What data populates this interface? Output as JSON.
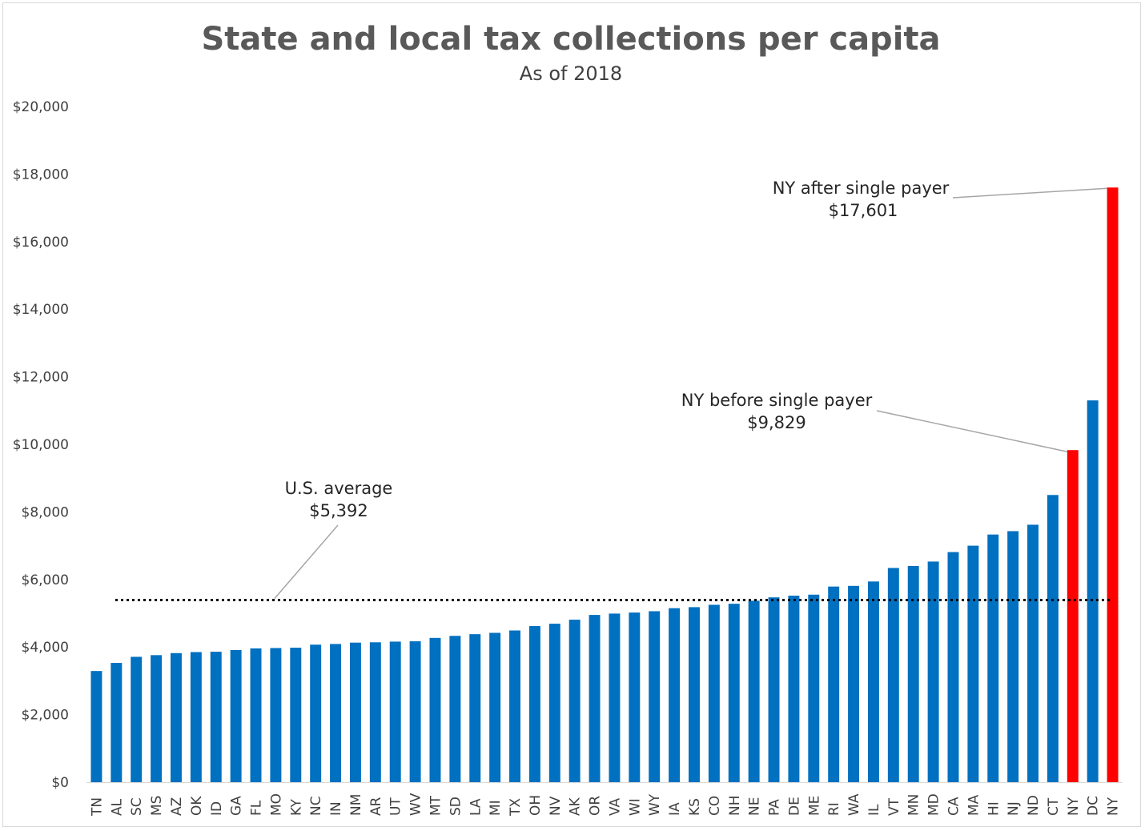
{
  "chart_data": {
    "type": "bar",
    "title": "State and local tax collections per capita",
    "subtitle": "As of 2018",
    "xlabel": "",
    "ylabel": "",
    "ylim": [
      0,
      20000
    ],
    "yticks": [
      {
        "value": 0,
        "label": "$0"
      },
      {
        "value": 2000,
        "label": "$2,000"
      },
      {
        "value": 4000,
        "label": "$4,000"
      },
      {
        "value": 6000,
        "label": "$6,000"
      },
      {
        "value": 8000,
        "label": "$8,000"
      },
      {
        "value": 10000,
        "label": "$10,000"
      },
      {
        "value": 12000,
        "label": "$12,000"
      },
      {
        "value": 14000,
        "label": "$14,000"
      },
      {
        "value": 16000,
        "label": "$16,000"
      },
      {
        "value": 18000,
        "label": "$18,000"
      },
      {
        "value": 20000,
        "label": "$20,000"
      }
    ],
    "grid": false,
    "categories": [
      "TN",
      "AL",
      "SC",
      "MS",
      "AZ",
      "OK",
      "ID",
      "GA",
      "FL",
      "MO",
      "KY",
      "NC",
      "IN",
      "NM",
      "AR",
      "UT",
      "WV",
      "MT",
      "SD",
      "LA",
      "MI",
      "TX",
      "OH",
      "NV",
      "AK",
      "OR",
      "VA",
      "WI",
      "WY",
      "IA",
      "KS",
      "CO",
      "NH",
      "NE",
      "PA",
      "DE",
      "ME",
      "RI",
      "WA",
      "IL",
      "VT",
      "MN",
      "MD",
      "CA",
      "MA",
      "HI",
      "NJ",
      "ND",
      "CT",
      "NY",
      "DC",
      "NY"
    ],
    "values": [
      3290,
      3530,
      3710,
      3760,
      3820,
      3850,
      3860,
      3910,
      3960,
      3970,
      3980,
      4070,
      4090,
      4130,
      4140,
      4160,
      4170,
      4270,
      4330,
      4380,
      4420,
      4490,
      4620,
      4690,
      4810,
      4950,
      4990,
      5020,
      5060,
      5150,
      5180,
      5250,
      5280,
      5370,
      5470,
      5520,
      5550,
      5790,
      5810,
      5940,
      6340,
      6400,
      6530,
      6810,
      7000,
      7330,
      7430,
      7620,
      8500,
      9829,
      11300,
      17601
    ],
    "colors": [
      "#0070c0",
      "#0070c0",
      "#0070c0",
      "#0070c0",
      "#0070c0",
      "#0070c0",
      "#0070c0",
      "#0070c0",
      "#0070c0",
      "#0070c0",
      "#0070c0",
      "#0070c0",
      "#0070c0",
      "#0070c0",
      "#0070c0",
      "#0070c0",
      "#0070c0",
      "#0070c0",
      "#0070c0",
      "#0070c0",
      "#0070c0",
      "#0070c0",
      "#0070c0",
      "#0070c0",
      "#0070c0",
      "#0070c0",
      "#0070c0",
      "#0070c0",
      "#0070c0",
      "#0070c0",
      "#0070c0",
      "#0070c0",
      "#0070c0",
      "#0070c0",
      "#0070c0",
      "#0070c0",
      "#0070c0",
      "#0070c0",
      "#0070c0",
      "#0070c0",
      "#0070c0",
      "#0070c0",
      "#0070c0",
      "#0070c0",
      "#0070c0",
      "#0070c0",
      "#0070c0",
      "#0070c0",
      "#0070c0",
      "#ff0000",
      "#0070c0",
      "#ff0000"
    ],
    "reference_line": {
      "value": 5392,
      "style": "dotted",
      "color": "#000000"
    },
    "annotations": [
      {
        "name": "us-average",
        "line1": "U.S. average",
        "line2": "$5,392",
        "target_value": 5392
      },
      {
        "name": "ny-before",
        "line1": "NY before single payer",
        "line2": "$9,829",
        "target_index": 49
      },
      {
        "name": "ny-after",
        "line1": "NY after single payer",
        "line2": "$17,601",
        "target_index": 51
      }
    ]
  }
}
